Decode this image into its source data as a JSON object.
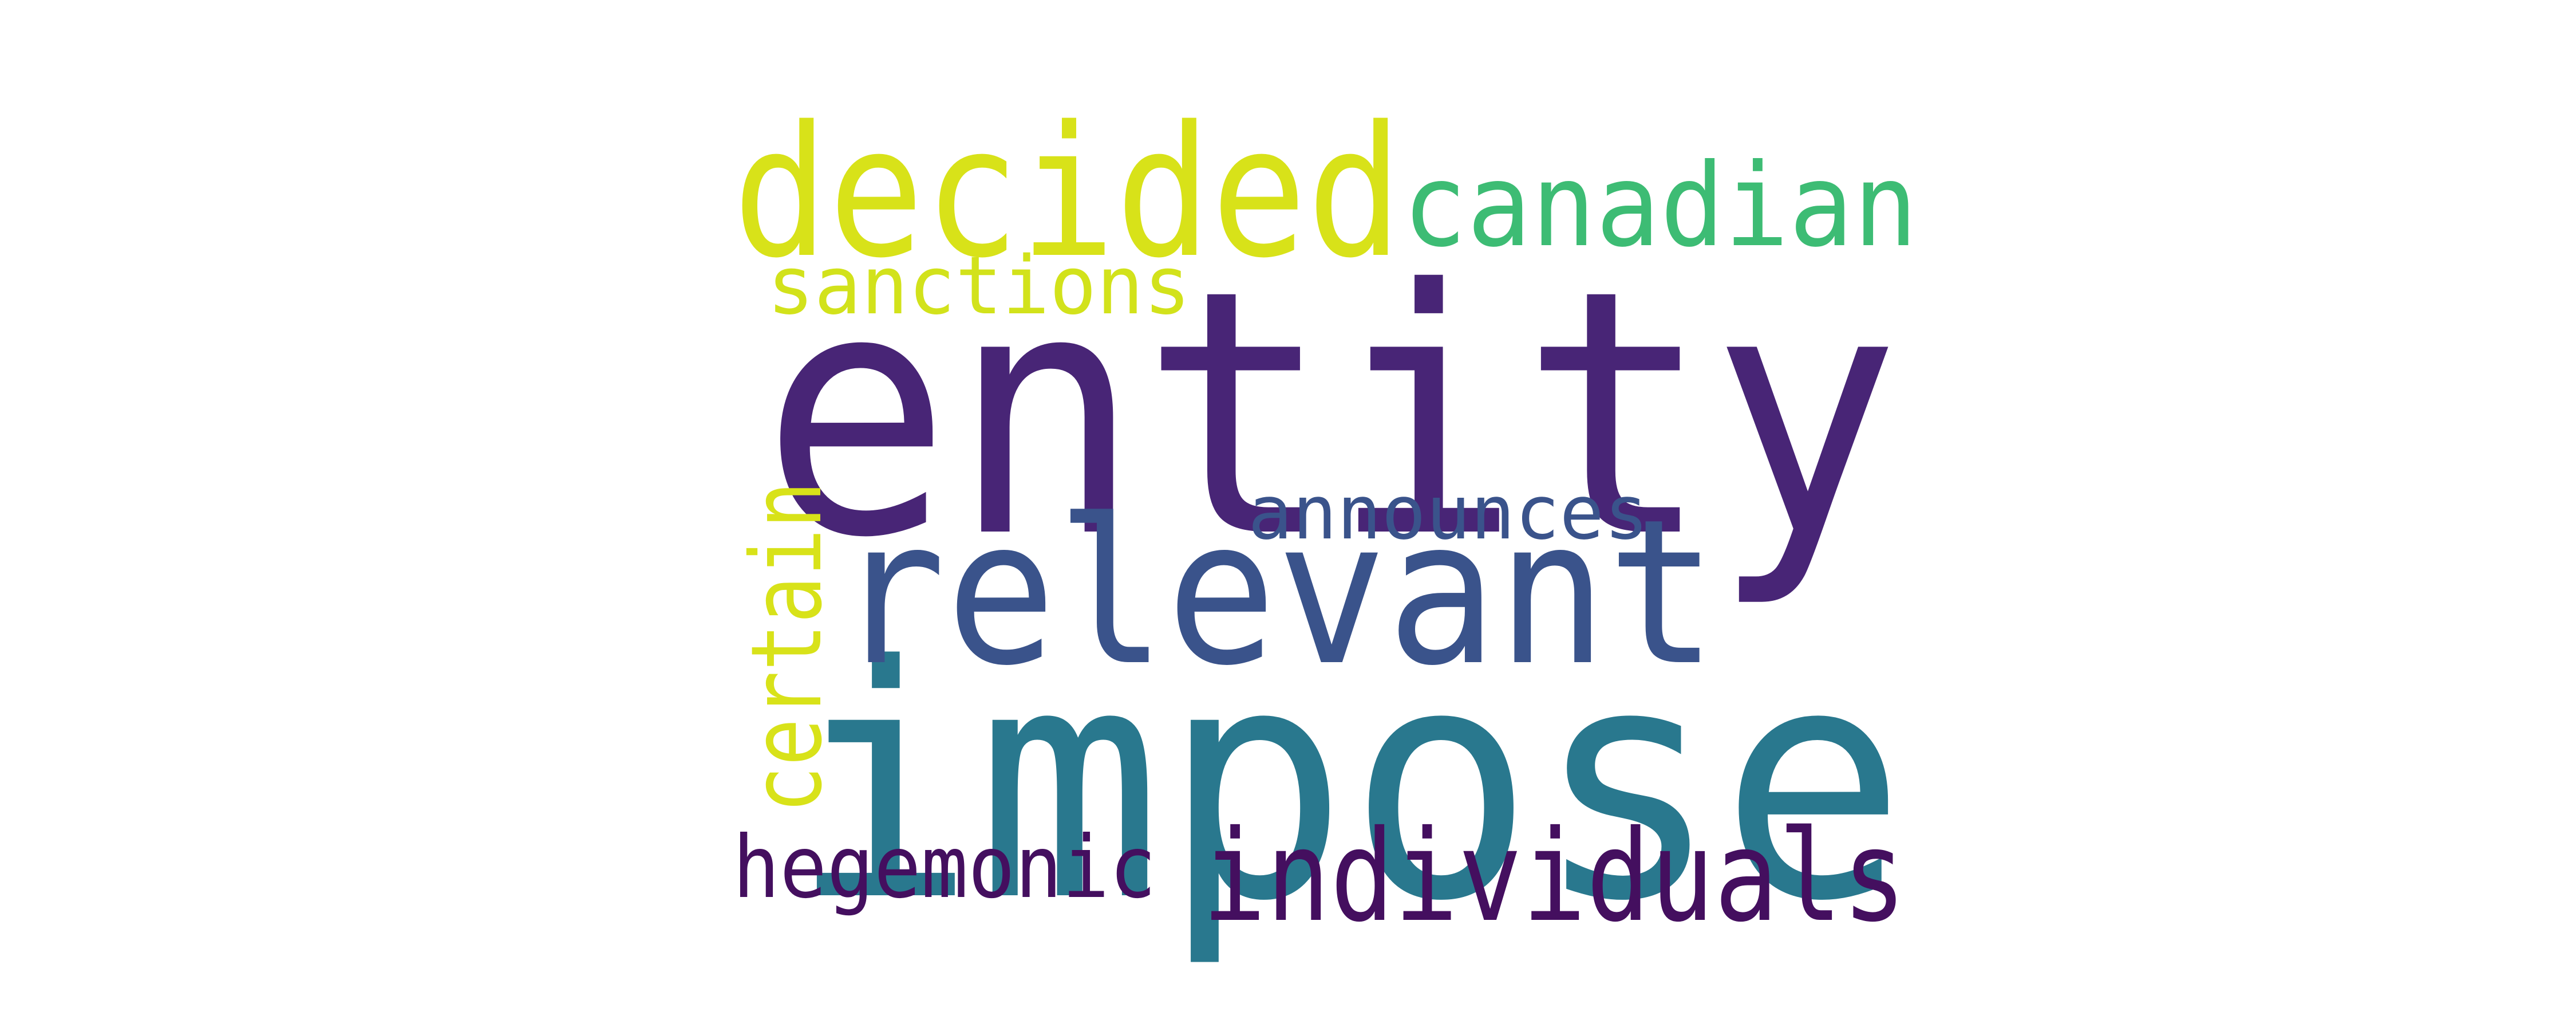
{
  "cloud": {
    "background_color": "#ffffff",
    "words": [
      {
        "text": "entity",
        "color": "#482576"
      },
      {
        "text": "impose",
        "color": "#29788e"
      },
      {
        "text": "relevant",
        "color": "#3a538b"
      },
      {
        "text": "decided",
        "color": "#d8e219"
      },
      {
        "text": "canadian",
        "color": "#3dbc74"
      },
      {
        "text": "individuals",
        "color": "#440f5f"
      },
      {
        "text": "sanctions",
        "color": "#d2e21b"
      },
      {
        "text": "announces",
        "color": "#3a538b"
      },
      {
        "text": "certain",
        "color": "#d8e219"
      },
      {
        "text": "hegemonic",
        "color": "#440f5f"
      }
    ]
  }
}
